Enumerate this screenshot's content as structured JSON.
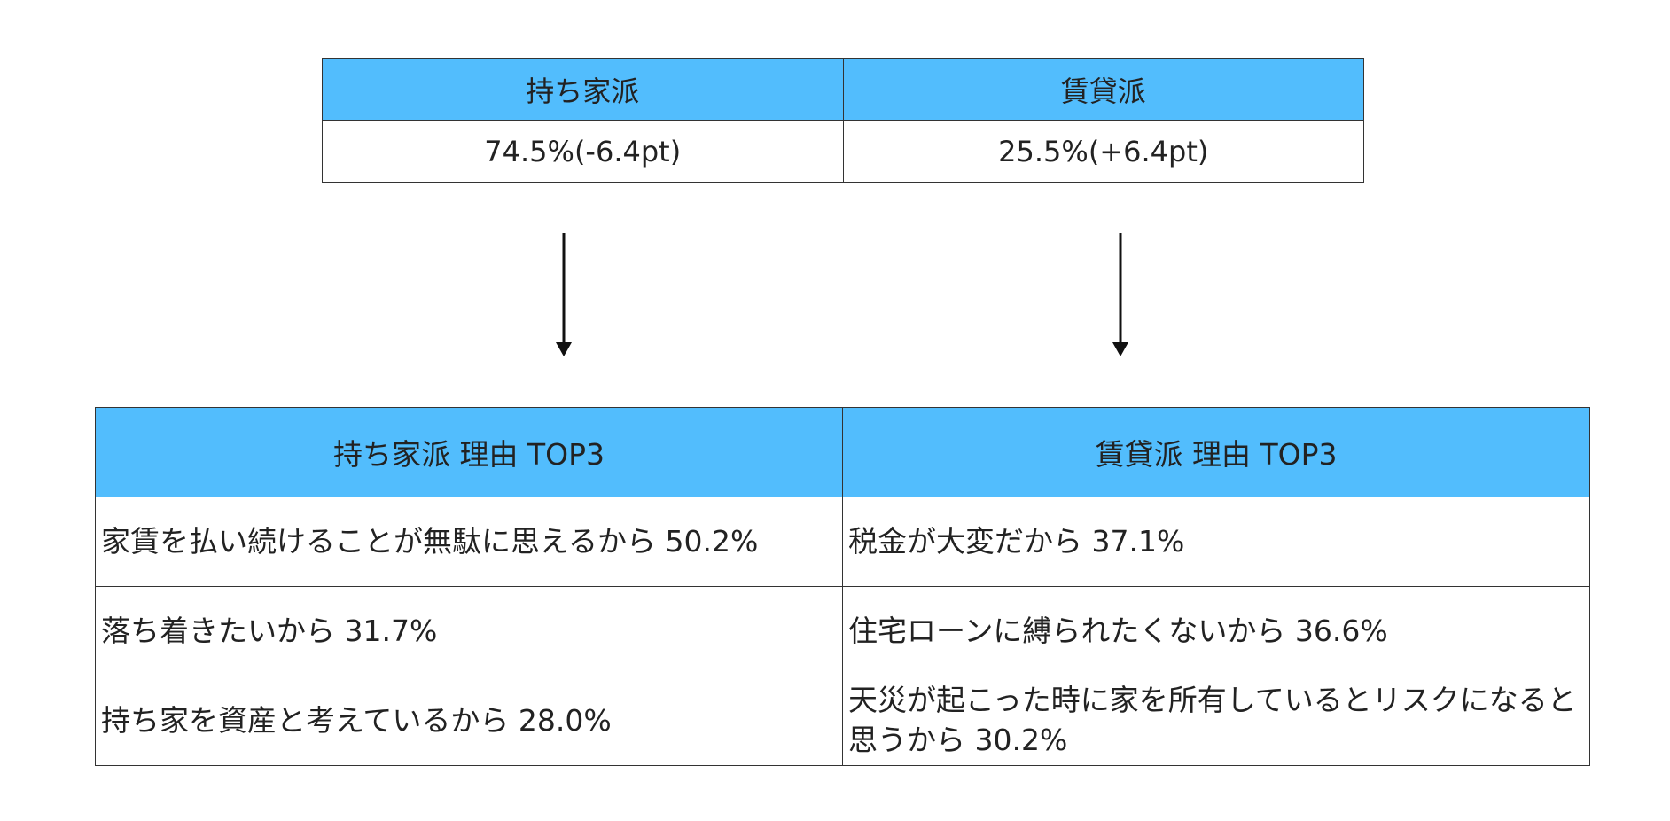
{
  "top_table": {
    "headers": [
      "持ち家派",
      "賃貸派"
    ],
    "rows": [
      [
        "74.5%(-6.4pt)",
        "25.5%(+6.4pt)"
      ]
    ]
  },
  "bottom_table": {
    "headers": [
      "持ち家派 理由 TOP3",
      "賃貸派 理由 TOP3"
    ],
    "rows": [
      [
        "家賃を払い続けることが無駄に思えるから 50.2%",
        "税金が大変だから 37.1%"
      ],
      [
        "落ち着きたいから 31.7%",
        "住宅ローンに縛られたくないから 36.6%"
      ],
      [
        "持ち家を資産と考えているから 28.0%",
        "天災が起こった時に家を所有しているとリスクになると思うから 30.2%"
      ]
    ]
  }
}
